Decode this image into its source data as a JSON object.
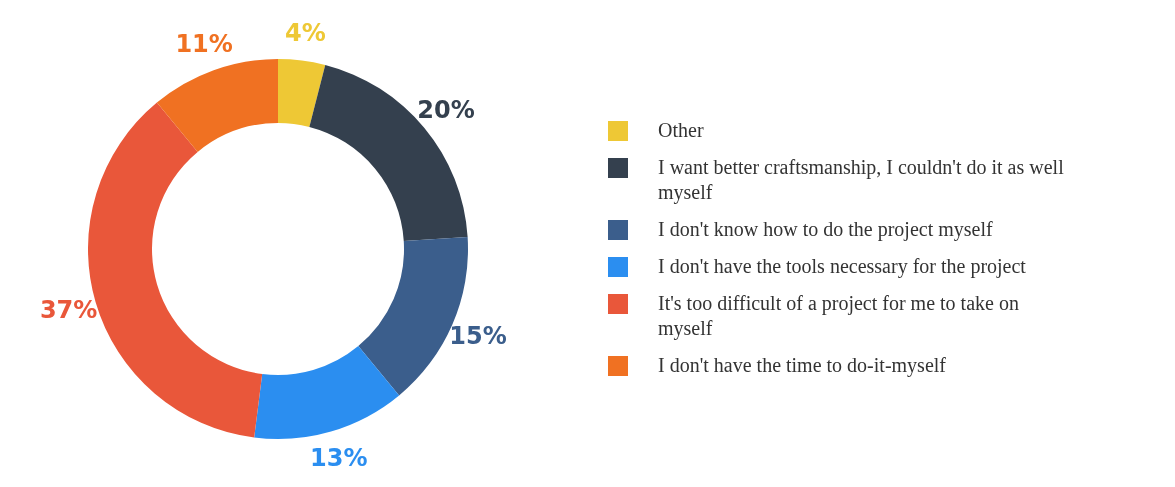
{
  "chart_data": {
    "type": "donut",
    "categories": [
      "Other",
      "I want better craftsmanship, I couldn't do it as well myself",
      "I don't know how to do the project myself",
      "I don't have the tools necessary for the project",
      "It's too difficult of a project for me to take on myself",
      "I don't have the time to do-it-myself"
    ],
    "values": [
      4,
      20,
      15,
      13,
      37,
      11
    ],
    "colors": [
      "#eec835",
      "#34404e",
      "#3b5e8c",
      "#2b8ef0",
      "#e9573a",
      "#f07122"
    ],
    "value_labels": [
      "4%",
      "20%",
      "15%",
      "13%",
      "37%",
      "11%"
    ],
    "legend": "right"
  }
}
